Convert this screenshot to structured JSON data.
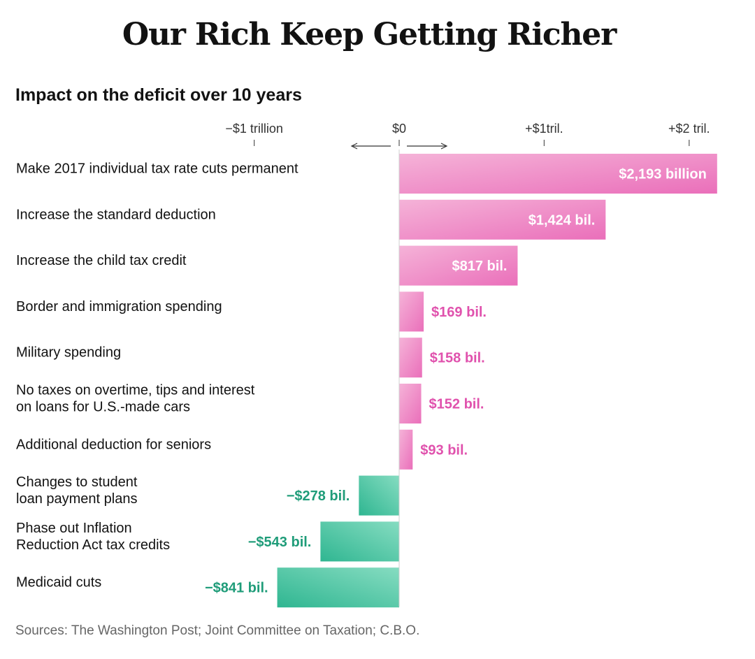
{
  "title": "Our Rich Keep Getting Richer",
  "subtitle": "Impact on the deficit over 10 years",
  "source": "Sources: The Washington Post; Joint Committee on Taxation; C.B.O.",
  "colors": {
    "positive_light": "#f5b3d8",
    "positive_dark": "#ea6fba",
    "positive_text": "#e052ad",
    "negative_light": "#86dcc1",
    "negative_dark": "#2fb691",
    "negative_text": "#1f9c79",
    "inside_text": "#ffffff"
  },
  "chart_data": {
    "type": "bar",
    "orientation": "horizontal",
    "unit": "billion dollars",
    "xlim": [
      -1000,
      2200
    ],
    "ticks": [
      {
        "value": -1000,
        "label": "−$1 trillion"
      },
      {
        "value": 0,
        "label": "$0"
      },
      {
        "value": 1000,
        "label": "+$1tril."
      },
      {
        "value": 2000,
        "label": "+$2 tril."
      }
    ],
    "bars": [
      {
        "label": [
          "Make 2017 individual tax rate cuts permanent"
        ],
        "value": 2193,
        "value_label": "$2,193 billion",
        "label_inside": true
      },
      {
        "label": [
          "Increase the standard deduction"
        ],
        "value": 1424,
        "value_label": "$1,424 bil.",
        "label_inside": true
      },
      {
        "label": [
          "Increase the child tax credit"
        ],
        "value": 817,
        "value_label": "$817 bil.",
        "label_inside": true
      },
      {
        "label": [
          "Border and immigration spending"
        ],
        "value": 169,
        "value_label": "$169 bil.",
        "label_inside": false
      },
      {
        "label": [
          "Military spending"
        ],
        "value": 158,
        "value_label": "$158 bil.",
        "label_inside": false
      },
      {
        "label": [
          "No taxes on overtime, tips and interest",
          "on loans for U.S.-made cars"
        ],
        "value": 152,
        "value_label": "$152 bil.",
        "label_inside": false
      },
      {
        "label": [
          "Additional deduction for seniors"
        ],
        "value": 93,
        "value_label": "$93 bil.",
        "label_inside": false
      },
      {
        "label": [
          "Changes to student",
          "loan payment plans"
        ],
        "value": -278,
        "value_label": "−$278 bil.",
        "label_inside": false
      },
      {
        "label": [
          "Phase out Inflation",
          "Reduction Act tax credits"
        ],
        "value": -543,
        "value_label": "−$543 bil.",
        "label_inside": false
      },
      {
        "label": [
          "Medicaid cuts"
        ],
        "value": -841,
        "value_label": "−$841 bil.",
        "label_inside": false
      }
    ]
  }
}
